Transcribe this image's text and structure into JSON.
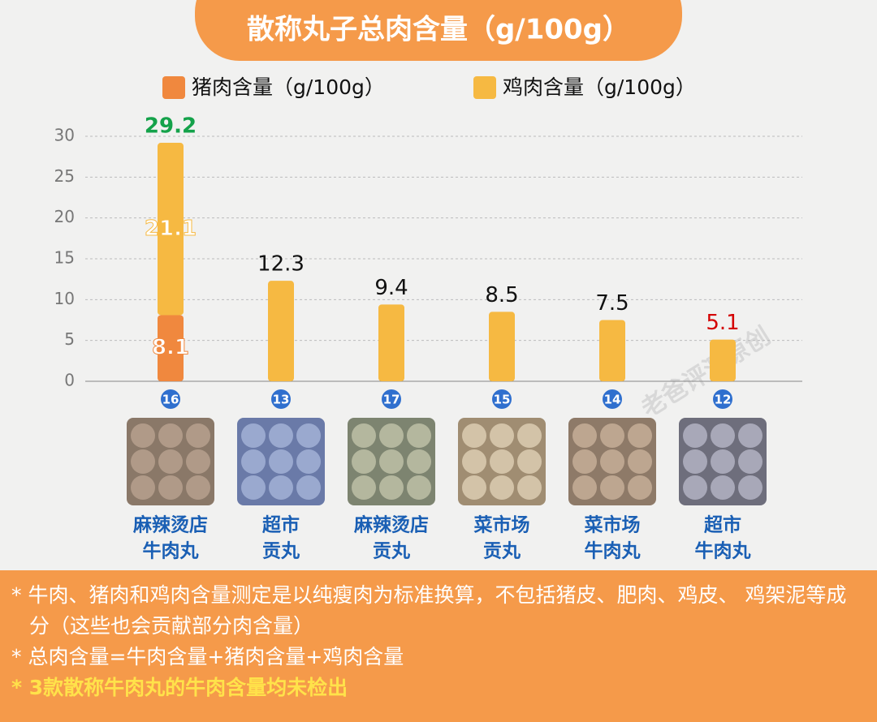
{
  "chart_data": {
    "type": "stacked-bar",
    "title": "散称丸子总肉含量（g/100g）",
    "categories": [
      [
        "麻辣烫店",
        "牛肉丸"
      ],
      [
        "超市",
        "贡丸"
      ],
      [
        "麻辣烫店",
        "贡丸"
      ],
      [
        "菜市场",
        "贡丸"
      ],
      [
        "菜市场",
        "牛肉丸"
      ],
      [
        "超市",
        "牛肉丸"
      ]
    ],
    "sample_ids": [
      "16",
      "13",
      "17",
      "15",
      "14",
      "12"
    ],
    "series": [
      {
        "name": "猪肉含量（g/100g）",
        "color": "#f0883e",
        "values": [
          8.1,
          null,
          null,
          null,
          null,
          null
        ]
      },
      {
        "name": "鸡肉含量（g/100g）",
        "color": "#f6b942",
        "values": [
          21.1,
          12.3,
          9.4,
          8.5,
          7.5,
          5.1
        ]
      }
    ],
    "totals": [
      29.2,
      null,
      null,
      null,
      null,
      null
    ],
    "top_label_colors": [
      "#14a24a",
      "#111111",
      "#111111",
      "#111111",
      "#111111",
      "#d40000"
    ],
    "ylim": [
      0,
      30
    ],
    "yticks": [
      0,
      5,
      10,
      15,
      20,
      25,
      30
    ],
    "grid": true
  },
  "watermark": "老爸评测原创",
  "notes": [
    "* 牛肉、猪肉和鸡肉含量测定是以纯瘦肉为标准换算，不包括猪皮、肥肉、鸡皮、 鸡架泥等成分（这些也会贡献部分肉含量）",
    "* 总肉含量=牛肉含量+猪肉含量+鸡肉含量",
    "* 3款散称牛肉丸的牛肉含量均未检出"
  ]
}
